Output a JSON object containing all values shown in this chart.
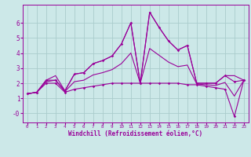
{
  "xlabel": "Windchill (Refroidissement éolien,°C)",
  "background_color": "#cce8e8",
  "grid_color": "#aacccc",
  "line_color": "#990099",
  "hours": [
    0,
    1,
    2,
    3,
    4,
    5,
    6,
    7,
    8,
    9,
    10,
    11,
    12,
    13,
    14,
    15,
    16,
    17,
    18,
    19,
    20,
    21,
    22,
    23
  ],
  "temp_line": [
    1.3,
    1.4,
    2.2,
    2.2,
    1.5,
    2.6,
    2.7,
    3.3,
    3.5,
    3.8,
    4.6,
    6.0,
    2.0,
    6.7,
    5.7,
    4.8,
    4.2,
    4.5,
    2.0,
    2.0,
    2.0,
    2.5,
    2.1,
    2.2
  ],
  "min_line": [
    1.3,
    1.4,
    2.0,
    2.0,
    1.4,
    1.6,
    1.7,
    1.8,
    1.9,
    2.0,
    2.0,
    2.0,
    2.0,
    2.0,
    2.0,
    2.0,
    2.0,
    1.9,
    1.9,
    1.8,
    1.7,
    1.6,
    -0.2,
    2.2
  ],
  "max_line": [
    1.3,
    1.4,
    2.2,
    2.5,
    1.5,
    2.6,
    2.7,
    3.3,
    3.5,
    3.8,
    4.6,
    6.0,
    2.0,
    6.7,
    5.7,
    4.8,
    4.2,
    4.5,
    2.0,
    2.0,
    2.0,
    2.5,
    2.5,
    2.2
  ],
  "avg_line": [
    1.3,
    1.4,
    2.1,
    2.2,
    1.45,
    2.1,
    2.2,
    2.55,
    2.7,
    2.9,
    3.3,
    4.0,
    2.0,
    4.3,
    3.85,
    3.4,
    3.1,
    3.2,
    1.95,
    1.9,
    1.85,
    2.05,
    1.15,
    2.2
  ],
  "ylim": [
    -0.6,
    7.2
  ],
  "yticks": [
    0,
    1,
    2,
    3,
    4,
    5,
    6
  ],
  "xticks": [
    0,
    1,
    2,
    3,
    4,
    5,
    6,
    7,
    8,
    9,
    10,
    11,
    12,
    13,
    14,
    15,
    16,
    17,
    18,
    19,
    20,
    21,
    22,
    23
  ],
  "markersize": 1.8,
  "linewidth": 0.8
}
